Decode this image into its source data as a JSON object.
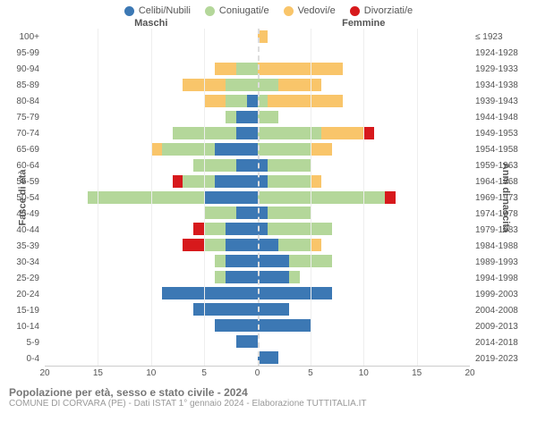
{
  "legend": [
    {
      "key": "celibi",
      "label": "Celibi/Nubili",
      "color": "#3C78B4"
    },
    {
      "key": "coniugati",
      "label": "Coniugati/e",
      "color": "#B4D79A"
    },
    {
      "key": "vedovi",
      "label": "Vedovi/e",
      "color": "#F9C56A"
    },
    {
      "key": "divorziati",
      "label": "Divorziati/e",
      "color": "#D7191C"
    }
  ],
  "headers": {
    "male": "Maschi",
    "female": "Femmine"
  },
  "axis": {
    "left_title": "Fasce di età",
    "right_title": "Anni di nascita",
    "xmax": 20,
    "xticks": [
      20,
      15,
      10,
      5,
      0,
      5,
      10,
      15,
      20
    ]
  },
  "colors": {
    "celibi": "#3C78B4",
    "coniugati": "#B4D79A",
    "vedovi": "#F9C56A",
    "divorziati": "#D7191C",
    "grid": "#eeeeee",
    "center_line": "#dddddd",
    "bg": "#ffffff"
  },
  "rows": [
    {
      "age": "100+",
      "birth": "≤ 1923",
      "m": {
        "celibi": 0,
        "coniugati": 0,
        "vedovi": 0,
        "divorziati": 0
      },
      "f": {
        "celibi": 0,
        "coniugati": 0,
        "vedovi": 1,
        "divorziati": 0
      }
    },
    {
      "age": "95-99",
      "birth": "1924-1928",
      "m": {
        "celibi": 0,
        "coniugati": 0,
        "vedovi": 0,
        "divorziati": 0
      },
      "f": {
        "celibi": 0,
        "coniugati": 0,
        "vedovi": 0,
        "divorziati": 0
      }
    },
    {
      "age": "90-94",
      "birth": "1929-1933",
      "m": {
        "celibi": 0,
        "coniugati": 2,
        "vedovi": 2,
        "divorziati": 0
      },
      "f": {
        "celibi": 0,
        "coniugati": 0,
        "vedovi": 8,
        "divorziati": 0
      }
    },
    {
      "age": "85-89",
      "birth": "1934-1938",
      "m": {
        "celibi": 0,
        "coniugati": 3,
        "vedovi": 4,
        "divorziati": 0
      },
      "f": {
        "celibi": 0,
        "coniugati": 2,
        "vedovi": 4,
        "divorziati": 0
      }
    },
    {
      "age": "80-84",
      "birth": "1939-1943",
      "m": {
        "celibi": 1,
        "coniugati": 2,
        "vedovi": 2,
        "divorziati": 0
      },
      "f": {
        "celibi": 0,
        "coniugati": 1,
        "vedovi": 7,
        "divorziati": 0
      }
    },
    {
      "age": "75-79",
      "birth": "1944-1948",
      "m": {
        "celibi": 2,
        "coniugati": 1,
        "vedovi": 0,
        "divorziati": 0
      },
      "f": {
        "celibi": 0,
        "coniugati": 2,
        "vedovi": 0,
        "divorziati": 0
      }
    },
    {
      "age": "70-74",
      "birth": "1949-1953",
      "m": {
        "celibi": 2,
        "coniugati": 6,
        "vedovi": 0,
        "divorziati": 0
      },
      "f": {
        "celibi": 0,
        "coniugati": 6,
        "vedovi": 4,
        "divorziati": 1
      }
    },
    {
      "age": "65-69",
      "birth": "1954-1958",
      "m": {
        "celibi": 4,
        "coniugati": 5,
        "vedovi": 1,
        "divorziati": 0
      },
      "f": {
        "celibi": 0,
        "coniugati": 5,
        "vedovi": 2,
        "divorziati": 0
      }
    },
    {
      "age": "60-64",
      "birth": "1959-1963",
      "m": {
        "celibi": 2,
        "coniugati": 4,
        "vedovi": 0,
        "divorziati": 0
      },
      "f": {
        "celibi": 1,
        "coniugati": 4,
        "vedovi": 0,
        "divorziati": 0
      }
    },
    {
      "age": "55-59",
      "birth": "1964-1968",
      "m": {
        "celibi": 4,
        "coniugati": 3,
        "vedovi": 0,
        "divorziati": 1
      },
      "f": {
        "celibi": 1,
        "coniugati": 4,
        "vedovi": 1,
        "divorziati": 0
      }
    },
    {
      "age": "50-54",
      "birth": "1969-1973",
      "m": {
        "celibi": 5,
        "coniugati": 11,
        "vedovi": 0,
        "divorziati": 0
      },
      "f": {
        "celibi": 0,
        "coniugati": 12,
        "vedovi": 0,
        "divorziati": 1
      }
    },
    {
      "age": "45-49",
      "birth": "1974-1978",
      "m": {
        "celibi": 2,
        "coniugati": 3,
        "vedovi": 0,
        "divorziati": 0
      },
      "f": {
        "celibi": 1,
        "coniugati": 4,
        "vedovi": 0,
        "divorziati": 0
      }
    },
    {
      "age": "40-44",
      "birth": "1979-1983",
      "m": {
        "celibi": 3,
        "coniugati": 2,
        "vedovi": 0,
        "divorziati": 1
      },
      "f": {
        "celibi": 1,
        "coniugati": 6,
        "vedovi": 0,
        "divorziati": 0
      }
    },
    {
      "age": "35-39",
      "birth": "1984-1988",
      "m": {
        "celibi": 3,
        "coniugati": 2,
        "vedovi": 0,
        "divorziati": 2
      },
      "f": {
        "celibi": 2,
        "coniugati": 3,
        "vedovi": 1,
        "divorziati": 0
      }
    },
    {
      "age": "30-34",
      "birth": "1989-1993",
      "m": {
        "celibi": 3,
        "coniugati": 1,
        "vedovi": 0,
        "divorziati": 0
      },
      "f": {
        "celibi": 3,
        "coniugati": 4,
        "vedovi": 0,
        "divorziati": 0
      }
    },
    {
      "age": "25-29",
      "birth": "1994-1998",
      "m": {
        "celibi": 3,
        "coniugati": 1,
        "vedovi": 0,
        "divorziati": 0
      },
      "f": {
        "celibi": 3,
        "coniugati": 1,
        "vedovi": 0,
        "divorziati": 0
      }
    },
    {
      "age": "20-24",
      "birth": "1999-2003",
      "m": {
        "celibi": 9,
        "coniugati": 0,
        "vedovi": 0,
        "divorziati": 0
      },
      "f": {
        "celibi": 7,
        "coniugati": 0,
        "vedovi": 0,
        "divorziati": 0
      }
    },
    {
      "age": "15-19",
      "birth": "2004-2008",
      "m": {
        "celibi": 6,
        "coniugati": 0,
        "vedovi": 0,
        "divorziati": 0
      },
      "f": {
        "celibi": 3,
        "coniugati": 0,
        "vedovi": 0,
        "divorziati": 0
      }
    },
    {
      "age": "10-14",
      "birth": "2009-2013",
      "m": {
        "celibi": 4,
        "coniugati": 0,
        "vedovi": 0,
        "divorziati": 0
      },
      "f": {
        "celibi": 5,
        "coniugati": 0,
        "vedovi": 0,
        "divorziati": 0
      }
    },
    {
      "age": "5-9",
      "birth": "2014-2018",
      "m": {
        "celibi": 2,
        "coniugati": 0,
        "vedovi": 0,
        "divorziati": 0
      },
      "f": {
        "celibi": 0,
        "coniugati": 0,
        "vedovi": 0,
        "divorziati": 0
      }
    },
    {
      "age": "0-4",
      "birth": "2019-2023",
      "m": {
        "celibi": 0,
        "coniugati": 0,
        "vedovi": 0,
        "divorziati": 0
      },
      "f": {
        "celibi": 2,
        "coniugati": 0,
        "vedovi": 0,
        "divorziati": 0
      }
    }
  ],
  "footer": {
    "title": "Popolazione per età, sesso e stato civile - 2024",
    "subtitle": "COMUNE DI CORVARA (PE) - Dati ISTAT 1° gennaio 2024 - Elaborazione TUTTITALIA.IT"
  }
}
